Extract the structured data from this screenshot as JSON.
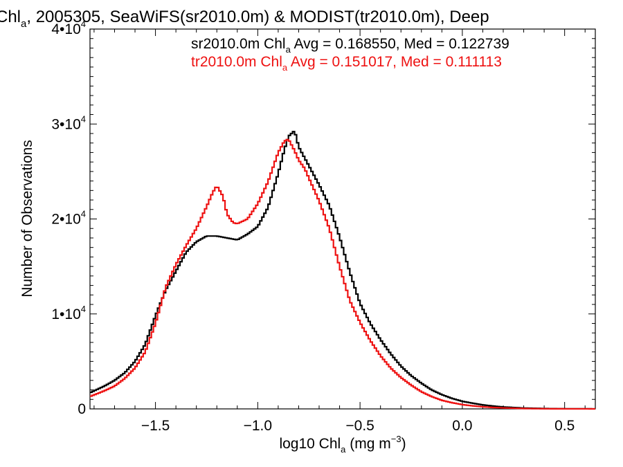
{
  "chart_data": {
    "type": "line",
    "title": {
      "pre": "Chl",
      "sub": "a",
      "post": ", 2005305, SeaWiFS(sr2010.0m) & MODIST(tr2010.0m), Deep"
    },
    "xlabel": {
      "pre": "log10 Chl",
      "sub": "a",
      "mid": " (mg m",
      "sup": "−3",
      "post": ")"
    },
    "ylabel": "Number of Observations",
    "xlim": [
      -1.82,
      0.65
    ],
    "ylim": [
      0,
      40000
    ],
    "xticks": [
      -1.5,
      -1.0,
      -0.5,
      0.0,
      0.5
    ],
    "xtick_labels": [
      "−1.5",
      "−1.0",
      "−0.5",
      "0.0",
      "0.5"
    ],
    "yticks": [
      {
        "value": 0,
        "base": "0",
        "exp": ""
      },
      {
        "value": 10000,
        "base": "1•10",
        "exp": "4"
      },
      {
        "value": 20000,
        "base": "2•10",
        "exp": "4"
      },
      {
        "value": 30000,
        "base": "3•10",
        "exp": "4"
      },
      {
        "value": 40000,
        "base": "4•10",
        "exp": "4"
      }
    ],
    "grid": false,
    "legend_placement": "top-right",
    "legend": [
      {
        "pre": "sr2010.0m Chl",
        "sub": "a",
        "post": " Avg = 0.168550, Med = 0.122739",
        "color": "#000000"
      },
      {
        "pre": "tr2010.0m Chl",
        "sub": "a",
        "post": " Avg = 0.151017, Med = 0.111113",
        "color": "#ee1111"
      }
    ],
    "series": [
      {
        "name": "sr2010.0m",
        "color": "#000000",
        "x": [
          -1.82,
          -1.75,
          -1.7,
          -1.65,
          -1.6,
          -1.55,
          -1.5,
          -1.45,
          -1.4,
          -1.35,
          -1.3,
          -1.25,
          -1.2,
          -1.15,
          -1.1,
          -1.05,
          -1.0,
          -0.95,
          -0.9,
          -0.87,
          -0.85,
          -0.82,
          -0.8,
          -0.77,
          -0.75,
          -0.7,
          -0.65,
          -0.6,
          -0.55,
          -0.5,
          -0.45,
          -0.4,
          -0.35,
          -0.3,
          -0.25,
          -0.2,
          -0.15,
          -0.1,
          -0.05,
          0.0,
          0.05,
          0.1,
          0.15,
          0.2,
          0.3,
          0.4,
          0.5,
          0.65
        ],
        "y": [
          1700,
          2400,
          3000,
          3800,
          5000,
          6800,
          9800,
          12500,
          14500,
          16500,
          17600,
          18200,
          18200,
          18000,
          17800,
          18400,
          19200,
          21200,
          24800,
          27300,
          28700,
          29300,
          27600,
          26400,
          25600,
          23600,
          21400,
          18100,
          14400,
          11100,
          9000,
          7300,
          5800,
          4500,
          3500,
          2700,
          2000,
          1500,
          1100,
          800,
          600,
          420,
          300,
          200,
          90,
          40,
          15,
          5
        ]
      },
      {
        "name": "tr2010.0m",
        "color": "#ee1111",
        "x": [
          -1.82,
          -1.75,
          -1.7,
          -1.65,
          -1.6,
          -1.55,
          -1.5,
          -1.45,
          -1.4,
          -1.35,
          -1.3,
          -1.25,
          -1.22,
          -1.2,
          -1.17,
          -1.15,
          -1.12,
          -1.1,
          -1.05,
          -1.0,
          -0.95,
          -0.9,
          -0.87,
          -0.85,
          -0.82,
          -0.8,
          -0.77,
          -0.75,
          -0.7,
          -0.65,
          -0.6,
          -0.55,
          -0.5,
          -0.45,
          -0.4,
          -0.35,
          -0.3,
          -0.25,
          -0.2,
          -0.15,
          -0.1,
          -0.05,
          0.0,
          0.05,
          0.1,
          0.15,
          0.2,
          0.3,
          0.4,
          0.5,
          0.65
        ],
        "y": [
          1300,
          1900,
          2400,
          3200,
          4300,
          6000,
          9000,
          12800,
          15200,
          17200,
          19000,
          21300,
          22800,
          23500,
          22400,
          20500,
          19600,
          19500,
          20000,
          21600,
          23900,
          27000,
          28200,
          28400,
          27200,
          26200,
          25300,
          24300,
          21900,
          19000,
          15000,
          11400,
          9100,
          7200,
          5600,
          4300,
          3300,
          2500,
          1800,
          1300,
          900,
          650,
          450,
          320,
          220,
          150,
          100,
          40,
          15,
          5,
          2
        ]
      }
    ]
  }
}
